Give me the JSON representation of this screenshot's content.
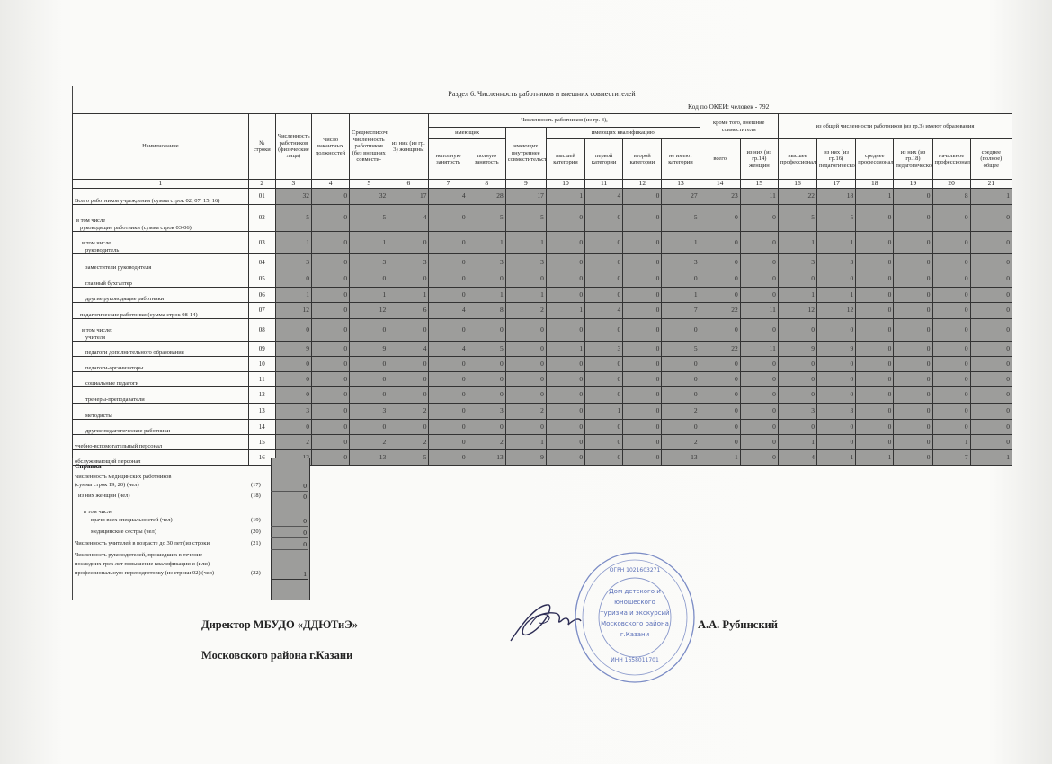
{
  "title": "Раздел 6. Численность работников и внешних совместителей",
  "okei": "Код по ОКЕИ: человек - 792",
  "header": {
    "name": "Наименование",
    "row_no": "№ строки",
    "c3": "Численность работников (физические лица)",
    "c4": "Число вакантных должностей",
    "c5": "Среднесписочная численность работников (без внешних совмести-",
    "c6": "из них (из гр. 3) женщины",
    "group_main": "Численность работников (из гр. 3),",
    "group_having": "имеющих",
    "c7": "неполную занятость",
    "c8": "полную занятость",
    "c9": "имеющих внутреннее совместительство",
    "group_qual": "имеющих квалификацию",
    "c10": "высшей категории",
    "c11": "первой категории",
    "c12": "второй категории",
    "c13": "не имеют категории",
    "group_ext": "кроме того, внешние совместители",
    "c14": "всего",
    "c15": "из них (из гр.14) женщин",
    "group_edu": "из общей численности работников (из гр.3) имеют образования",
    "c16": "высшее профессиональное",
    "c17": "из них (из гр.16) педагогическое",
    "c18": "среднее профессиональное",
    "c19": "из них (из гр.18) педагогическое",
    "c20": "начальное профессиональное",
    "c21": "среднее (полное) общее",
    "col_numbers": [
      "1",
      "2",
      "3",
      "4",
      "5",
      "6",
      "7",
      "8",
      "9",
      "10",
      "11",
      "12",
      "13",
      "14",
      "15",
      "16",
      "17",
      "18",
      "19",
      "20",
      "21"
    ]
  },
  "rows": [
    {
      "name": "Всего работников учреждения (сумма строк 02, 07, 15, 16)",
      "pre": "",
      "indent": 0,
      "code": "01",
      "values": [
        32,
        0,
        32,
        17,
        4,
        28,
        17,
        1,
        4,
        0,
        27,
        23,
        11,
        22,
        18,
        1,
        0,
        8,
        1
      ]
    },
    {
      "name": "руководящие работники (сумма строк 03-06)",
      "pre": "в том числе",
      "indent": 1,
      "code": "02",
      "values": [
        5,
        0,
        5,
        4,
        0,
        5,
        5,
        0,
        0,
        0,
        5,
        0,
        0,
        5,
        5,
        0,
        0,
        0,
        0
      ]
    },
    {
      "name": "руководитель",
      "pre": "в том числе",
      "indent": 2,
      "code": "03",
      "values": [
        1,
        0,
        1,
        0,
        0,
        1,
        1,
        0,
        0,
        0,
        1,
        0,
        0,
        1,
        1,
        0,
        0,
        0,
        0
      ]
    },
    {
      "name": "заместители руководителя",
      "pre": "",
      "indent": 2,
      "code": "04",
      "values": [
        3,
        0,
        3,
        3,
        0,
        3,
        3,
        0,
        0,
        0,
        3,
        0,
        0,
        3,
        3,
        0,
        0,
        0,
        0
      ]
    },
    {
      "name": "главный бухгалтер",
      "pre": "",
      "indent": 2,
      "code": "05",
      "values": [
        0,
        0,
        0,
        0,
        0,
        0,
        0,
        0,
        0,
        0,
        0,
        0,
        0,
        0,
        0,
        0,
        0,
        0,
        0
      ]
    },
    {
      "name": "другие руководящие работники",
      "pre": "",
      "indent": 2,
      "code": "06",
      "values": [
        1,
        0,
        1,
        1,
        0,
        1,
        1,
        0,
        0,
        0,
        1,
        0,
        0,
        1,
        1,
        0,
        0,
        0,
        0
      ]
    },
    {
      "name": "педагогические работники (сумма строк 08-14)",
      "pre": "",
      "indent": 1,
      "code": "07",
      "values": [
        12,
        0,
        12,
        6,
        4,
        8,
        2,
        1,
        4,
        0,
        7,
        22,
        11,
        12,
        12,
        0,
        0,
        0,
        0
      ]
    },
    {
      "name": "учителя",
      "pre": "в том числе:",
      "indent": 2,
      "code": "08",
      "values": [
        0,
        0,
        0,
        0,
        0,
        0,
        0,
        0,
        0,
        0,
        0,
        0,
        0,
        0,
        0,
        0,
        0,
        0,
        0
      ]
    },
    {
      "name": "педагоги дополнительного образования",
      "pre": "",
      "indent": 2,
      "code": "09",
      "values": [
        9,
        0,
        9,
        4,
        4,
        5,
        0,
        1,
        3,
        0,
        5,
        22,
        11,
        9,
        9,
        0,
        0,
        0,
        0
      ]
    },
    {
      "name": "педагоги-организаторы",
      "pre": "",
      "indent": 2,
      "code": "10",
      "values": [
        0,
        0,
        0,
        0,
        0,
        0,
        0,
        0,
        0,
        0,
        0,
        0,
        0,
        0,
        0,
        0,
        0,
        0,
        0
      ]
    },
    {
      "name": "социальные педагоги",
      "pre": "",
      "indent": 2,
      "code": "11",
      "values": [
        0,
        0,
        0,
        0,
        0,
        0,
        0,
        0,
        0,
        0,
        0,
        0,
        0,
        0,
        0,
        0,
        0,
        0,
        0
      ]
    },
    {
      "name": "тренеры-преподаватели",
      "pre": "",
      "indent": 2,
      "code": "12",
      "values": [
        0,
        0,
        0,
        0,
        0,
        0,
        0,
        0,
        0,
        0,
        0,
        0,
        0,
        0,
        0,
        0,
        0,
        0,
        0
      ]
    },
    {
      "name": "методисты",
      "pre": "",
      "indent": 2,
      "code": "13",
      "values": [
        3,
        0,
        3,
        2,
        0,
        3,
        2,
        0,
        1,
        0,
        2,
        0,
        0,
        3,
        3,
        0,
        0,
        0,
        0
      ]
    },
    {
      "name": "другие педагогические работники",
      "pre": "",
      "indent": 2,
      "code": "14",
      "values": [
        0,
        0,
        0,
        0,
        0,
        0,
        0,
        0,
        0,
        0,
        0,
        0,
        0,
        0,
        0,
        0,
        0,
        0,
        0
      ]
    },
    {
      "name": "учебно-вспомогательный персонал",
      "pre": "",
      "indent": 0,
      "code": "15",
      "values": [
        2,
        0,
        2,
        2,
        0,
        2,
        1,
        0,
        0,
        0,
        2,
        0,
        0,
        1,
        0,
        0,
        0,
        1,
        0
      ]
    },
    {
      "name": "обслуживающий персонал",
      "pre": "",
      "indent": 0,
      "code": "16",
      "values": [
        13,
        0,
        13,
        5,
        0,
        13,
        9,
        0,
        0,
        0,
        13,
        1,
        0,
        4,
        1,
        1,
        0,
        7,
        1
      ]
    }
  ],
  "reference": {
    "title": "Справка",
    "r17_line1": "Численность медицинских работников",
    "r17_line2": "(сумма строк 19, 20) (чел)",
    "r17_code": "(17)",
    "r17_value": "0",
    "r18": "из них женщин (чел)",
    "r18_code": "(18)",
    "r18_value": "0",
    "in_that": "в том числе",
    "r19": "врачи всех специальностей (чел)",
    "r19_code": "(19)",
    "r19_value": "0",
    "r20": "медицинские сестры (чел)",
    "r20_code": "(20)",
    "r20_value": "0",
    "r21": "Численность учителей в возрасте до 30 лет (из строки",
    "r21_code": "(21)",
    "r21_value": "0",
    "r22_line1": "Численность руководителей, прошедших в течение",
    "r22_line2": "последних трех лет повышение квалификации и (или)",
    "r22_line3": "профессиональную переподготовку (из строки 02) (чел)",
    "r22_code": "(22)",
    "r22_value": "1"
  },
  "signature": {
    "position_line1": "Директор МБУДО «ДДЮТиЭ»",
    "position_line2": "Московского района г.Казани",
    "name": "А.А. Рубинский"
  },
  "stamp": {
    "text": "Дом детского и юношеского туризма и экскурсий Московского района г.Казани",
    "ogrn": "ОГРН 1021603271",
    "inn": "ИНН 1658011701",
    "color": "#5a6fb8"
  },
  "colors": {
    "cell_shade": "#9d9d9b",
    "grid": "#333333"
  }
}
